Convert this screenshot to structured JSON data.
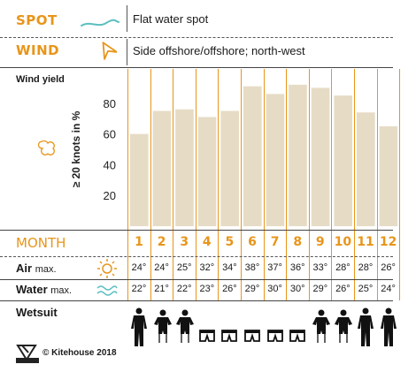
{
  "header": {
    "spot_label": "SPOT",
    "spot_value": "Flat water spot",
    "wind_label": "WIND",
    "wind_value": "Side offshore/offshore; north-west"
  },
  "rows": {
    "wind_yield_label": "Wind yield",
    "month_label": "MONTH",
    "air_label": "Air",
    "air_suffix": "max.",
    "water_label": "Water",
    "water_suffix": "max.",
    "wetsuit_label": "Wetsuit"
  },
  "months": [
    "1",
    "2",
    "3",
    "4",
    "5",
    "6",
    "7",
    "8",
    "9",
    "10",
    "11",
    "12"
  ],
  "air_max": [
    "24°",
    "24°",
    "25°",
    "32°",
    "34°",
    "38°",
    "37°",
    "36°",
    "33°",
    "28°",
    "28°",
    "26°"
  ],
  "water_max": [
    "22°",
    "21°",
    "22°",
    "23°",
    "26°",
    "29°",
    "30°",
    "30°",
    "29°",
    "26°",
    "25°",
    "24°"
  ],
  "wetsuits": [
    "full",
    "shorty",
    "shorty",
    "shorts",
    "shorts",
    "shorts",
    "shorts",
    "shorts",
    "shorty",
    "shorty",
    "full",
    "full"
  ],
  "footer": {
    "copyright": "© Kitehouse 2018"
  },
  "colors": {
    "accent": "#e8951a",
    "bar": "#e6dcc6",
    "water_icon": "#5bbfc0"
  },
  "chart_data": {
    "type": "bar",
    "categories": [
      "1",
      "2",
      "3",
      "4",
      "5",
      "6",
      "7",
      "8",
      "9",
      "10",
      "11",
      "12"
    ],
    "values": [
      60,
      75,
      76,
      71,
      75,
      91,
      86,
      92,
      90,
      85,
      74,
      65
    ],
    "ylabel": "≥ 20 knots in %",
    "yticks": [
      20,
      40,
      60,
      80
    ],
    "ylim": [
      0,
      100
    ]
  }
}
